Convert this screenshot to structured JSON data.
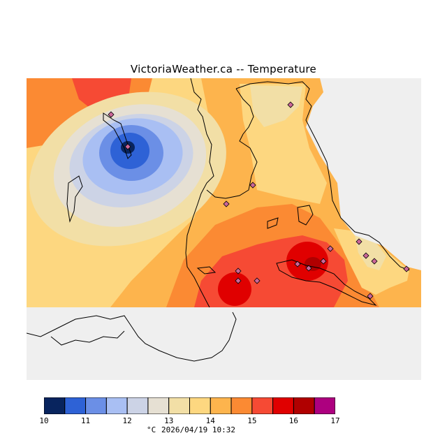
{
  "title": "VictoriaWeather.ca -- Temperature",
  "legend": {
    "unit": "°C",
    "timestamp": "2026/04/19 10:32",
    "ticks": [
      "10",
      "11",
      "12",
      "13",
      "14",
      "15",
      "16",
      "17"
    ],
    "colors": [
      "#08245e",
      "#2e62d6",
      "#6b8fe6",
      "#a9bff3",
      "#ccd3e6",
      "#e6e0d3",
      "#f2dfa6",
      "#fdd780",
      "#fdb44d",
      "#fb8a33",
      "#f64a34",
      "#e00000",
      "#b00000",
      "#ad007f"
    ]
  },
  "map": {
    "background_color": "#efefef",
    "land_outline_color": "#000000",
    "station_marker_color": "#cc6699",
    "station_marker_shape": "diamond"
  }
}
